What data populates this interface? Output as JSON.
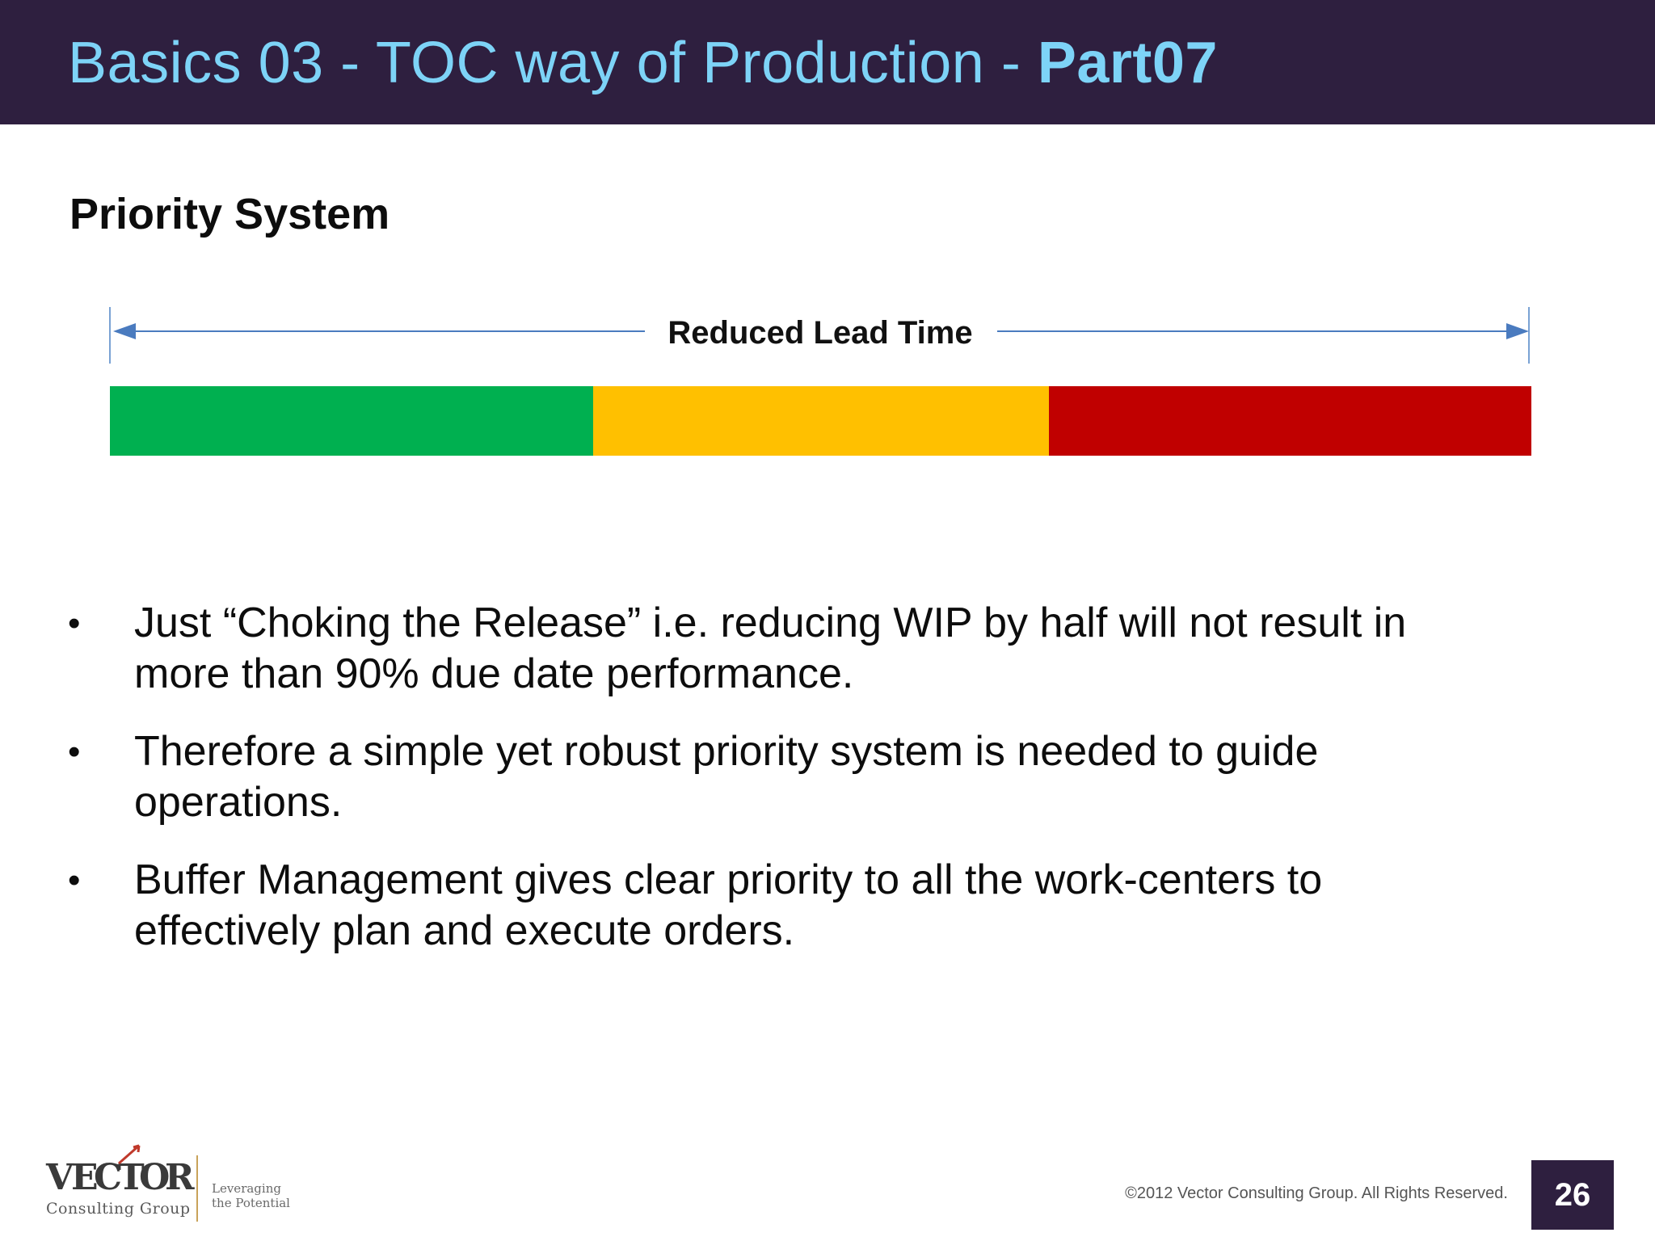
{
  "header": {
    "title_prefix": "Basics 03 - TOC way of Production - ",
    "title_bold": "Part07"
  },
  "section": {
    "title": "Priority System"
  },
  "diagram": {
    "lead_time_label": "Reduced Lead Time",
    "zones": [
      {
        "name": "green",
        "color": "#00b050"
      },
      {
        "name": "yellow",
        "color": "#ffc000"
      },
      {
        "name": "red",
        "color": "#c00000"
      }
    ]
  },
  "bullets": [
    {
      "text": "Just “Choking the Release” i.e. reducing WIP by half will not result in more than 90% due date performance."
    },
    {
      "text": "Therefore a simple yet robust priority system is needed to guide operations."
    },
    {
      "text": "Buffer Management gives clear priority to all the work-centers to effectively plan and execute orders."
    }
  ],
  "footer": {
    "logo_name": "VECTOR",
    "logo_sub": "Consulting Group",
    "logo_tagline_1": "Leveraging",
    "logo_tagline_2": "the Potential",
    "copyright": "©2012 Vector Consulting Group. All  Rights Reserved.",
    "page_number": "26"
  },
  "colors": {
    "header_bg": "#2e1f3f",
    "title_text": "#7dd3f7",
    "arrow": "#4a7bbf"
  }
}
